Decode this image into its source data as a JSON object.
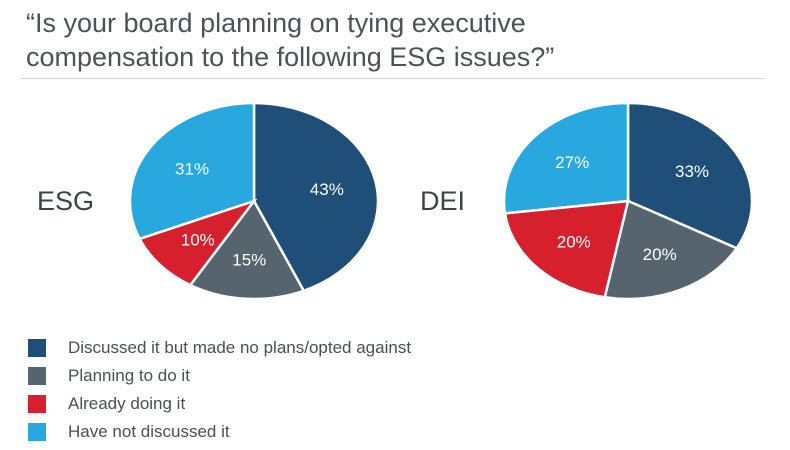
{
  "title_lines": [
    "“Is your board planning on tying executive",
    "compensation to the following ESG issues?”"
  ],
  "colors": {
    "discussed": "#1f4e79",
    "planning": "#56646f",
    "already": "#d6202e",
    "not_discussed": "#29a8e0"
  },
  "legend": [
    {
      "label": "Discussed it but made no plans/opted against",
      "color": "#1f4e79"
    },
    {
      "label": "Planning to do it",
      "color": "#56646f"
    },
    {
      "label": "Already doing it",
      "color": "#d6202e"
    },
    {
      "label": "Have not discussed it",
      "color": "#29a8e0"
    }
  ],
  "chart_data": [
    {
      "type": "pie",
      "title": "ESG",
      "labels": [
        "Discussed it but made no plans/opted against",
        "Planning to do it",
        "Already doing it",
        "Have not discussed it"
      ],
      "values": [
        43,
        15,
        10,
        31
      ],
      "value_labels": [
        "43%",
        "15%",
        "10%",
        "31%"
      ]
    },
    {
      "type": "pie",
      "title": "DEI",
      "labels": [
        "Discussed it but made no plans/opted against",
        "Planning to do it",
        "Already doing it",
        "Have not discussed it"
      ],
      "values": [
        33,
        20,
        20,
        27
      ],
      "value_labels": [
        "33%",
        "20%",
        "20%",
        "27%"
      ]
    }
  ]
}
